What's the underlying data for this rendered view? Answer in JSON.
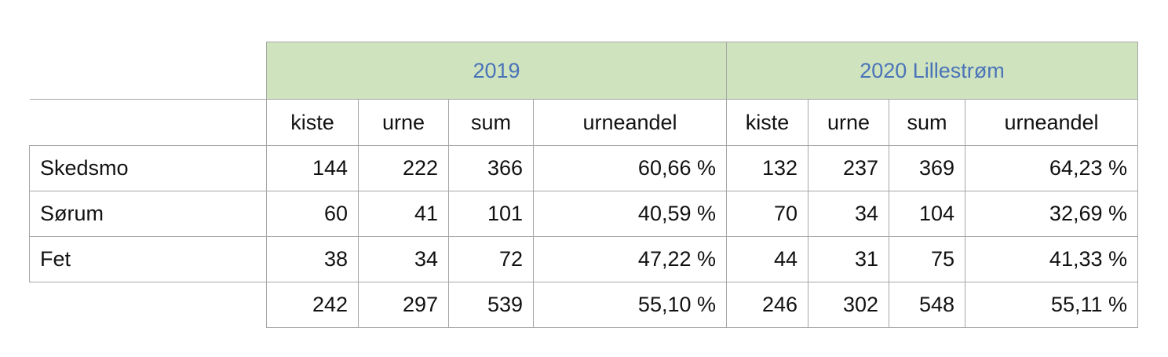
{
  "groups": [
    "2019",
    "2020 Lillestrøm"
  ],
  "subheaders": [
    "kiste",
    "urne",
    "sum",
    "urneandel"
  ],
  "rows": [
    {
      "name": "Skedsmo",
      "y2019": [
        "144",
        "222",
        "366",
        "60,66 %"
      ],
      "y2020": [
        "132",
        "237",
        "369",
        "64,23 %"
      ]
    },
    {
      "name": "Sørum",
      "y2019": [
        "60",
        "41",
        "101",
        "40,59 %"
      ],
      "y2020": [
        "70",
        "34",
        "104",
        "32,69 %"
      ]
    },
    {
      "name": "Fet",
      "y2019": [
        "38",
        "34",
        "72",
        "47,22 %"
      ],
      "y2020": [
        "44",
        "31",
        "75",
        "41,33 %"
      ]
    }
  ],
  "totals": {
    "y2019": [
      "242",
      "297",
      "539",
      "55,10 %"
    ],
    "y2020": [
      "246",
      "302",
      "548",
      "55,11 %"
    ]
  },
  "colors": {
    "header_fill": "#cfe3bf",
    "header_text": "#4a73b8",
    "border": "#a6a6a6"
  }
}
